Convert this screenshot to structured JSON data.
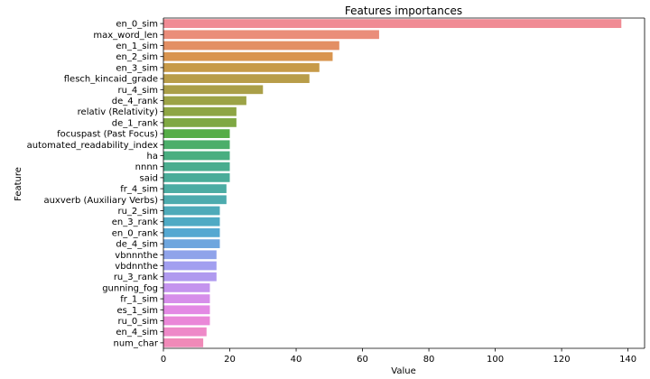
{
  "chart_data": {
    "type": "bar",
    "orientation": "horizontal",
    "title": "Features importances",
    "xlabel": "Value",
    "ylabel": "Feature",
    "xlim": [
      0,
      145
    ],
    "xticks": [
      0,
      20,
      40,
      60,
      80,
      100,
      120,
      140
    ],
    "grid": false,
    "categories": [
      "en_0_sim",
      "max_word_len",
      "en_1_sim",
      "en_2_sim",
      "en_3_sim",
      "flesch_kincaid_grade",
      "ru_4_sim",
      "de_4_rank",
      "relativ (Relativity)",
      "de_1_rank",
      "focuspast (Past Focus)",
      "automated_readability_index",
      "ha",
      "nnnn",
      "said",
      "fr_4_sim",
      "auxverb (Auxiliary Verbs)",
      "ru_2_sim",
      "en_3_rank",
      "en_0_rank",
      "de_4_sim",
      "vbnnnthe",
      "vbdnnthe",
      "ru_3_rank",
      "gunning_fog",
      "fr_1_sim",
      "es_1_sim",
      "ru_0_sim",
      "en_4_sim",
      "num_char"
    ],
    "values": [
      138,
      65,
      53,
      51,
      47,
      44,
      30,
      25,
      22,
      22,
      20,
      20,
      20,
      20,
      20,
      19,
      19,
      17,
      17,
      17,
      17,
      16,
      16,
      16,
      14,
      14,
      14,
      14,
      13,
      12
    ],
    "colors": [
      "#f08b94",
      "#ea8d7a",
      "#e38f64",
      "#d99550",
      "#c79a48",
      "#b89d49",
      "#aa9f48",
      "#9ca346",
      "#8ea544",
      "#7fa843",
      "#56ad47",
      "#4cae6a",
      "#49ae80",
      "#4aad8f",
      "#4bac99",
      "#4caca3",
      "#4dabae",
      "#4eaab9",
      "#4faac4",
      "#55a8d1",
      "#6ea6de",
      "#8fa3ea",
      "#a29ff0",
      "#b09aef",
      "#c494ee",
      "#d68eea",
      "#e389e4",
      "#ea87d8",
      "#ee89c8",
      "#f08ab8"
    ]
  }
}
